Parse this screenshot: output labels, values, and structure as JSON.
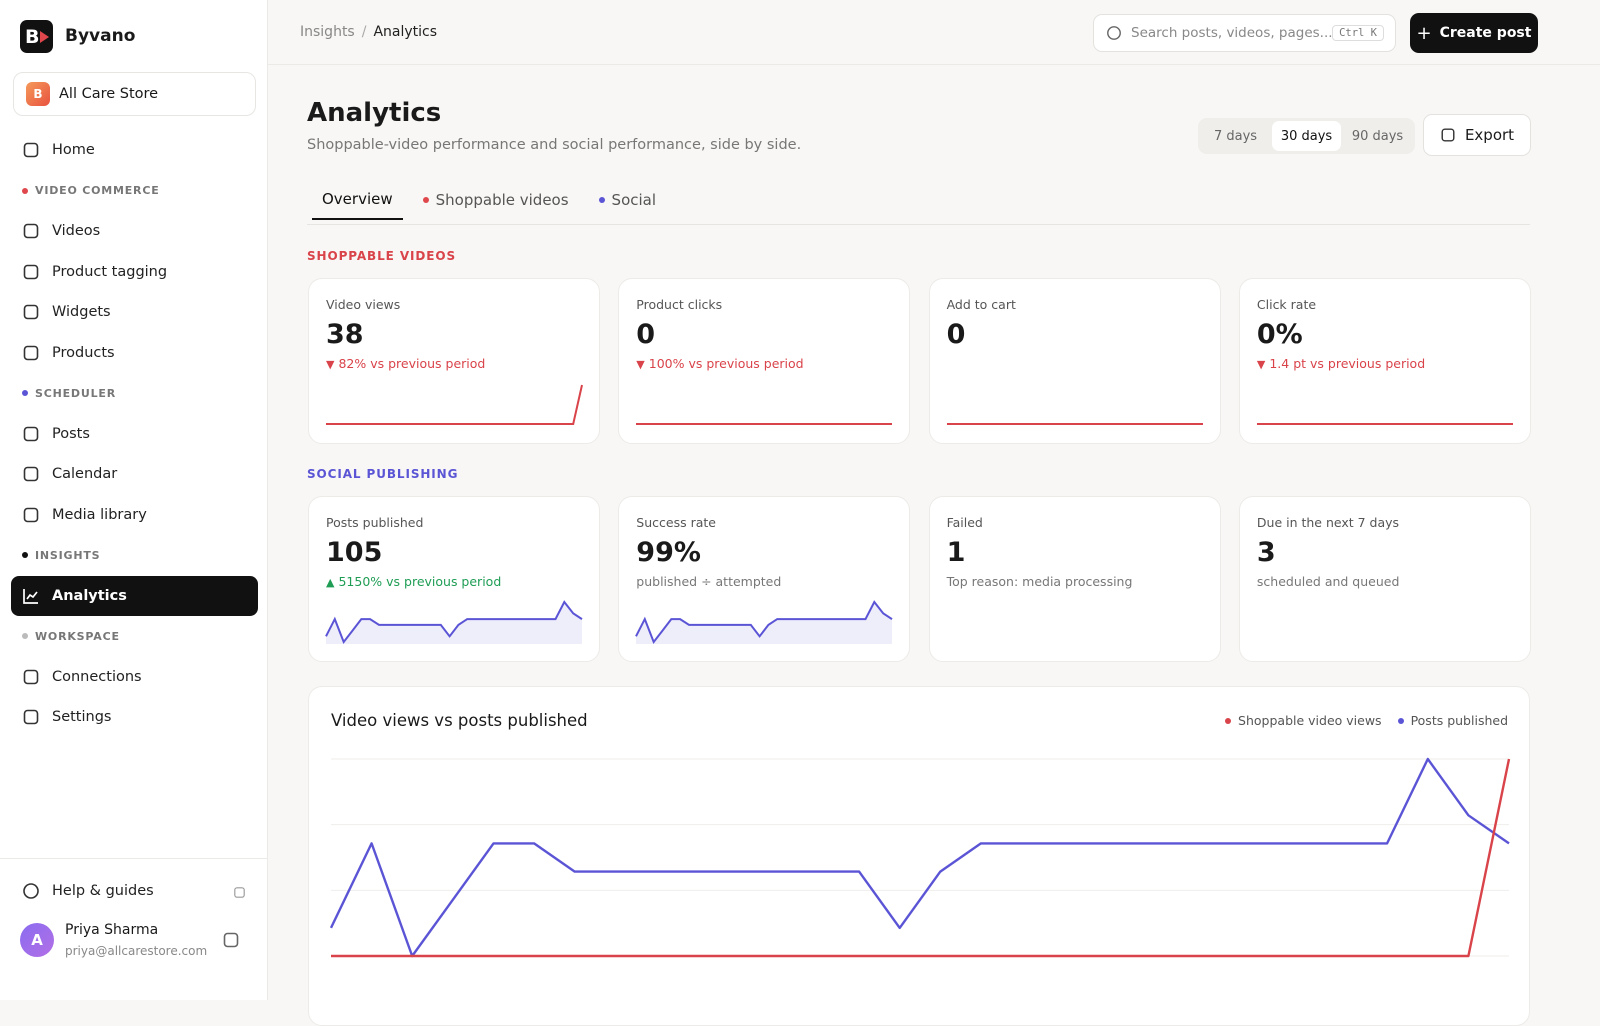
{
  "sidebar": {
    "brand": {
      "initial": "B",
      "name": "Byvano"
    },
    "store": {
      "initial": "B",
      "name": "All Care Store"
    },
    "home": "Home",
    "sections": [
      {
        "title": "VIDEO COMMERCE",
        "color": "#e0474c",
        "items": [
          {
            "label": "Videos"
          },
          {
            "label": "Product tagging"
          },
          {
            "label": "Widgets"
          },
          {
            "label": "Products"
          }
        ]
      },
      {
        "title": "SCHEDULER",
        "color": "#5b55d6",
        "items": [
          {
            "label": "Posts"
          },
          {
            "label": "Calendar"
          },
          {
            "label": "Media library"
          }
        ]
      },
      {
        "title": "INSIGHTS",
        "color": "#111111",
        "items": [
          {
            "label": "Analytics",
            "active": true
          }
        ]
      },
      {
        "title": "WORKSPACE",
        "color": "#bbbbbb",
        "items": [
          {
            "label": "Connections"
          },
          {
            "label": "Settings"
          }
        ]
      }
    ],
    "help": "Help & guides",
    "user": {
      "initial": "A",
      "name": "Priya Sharma",
      "email": "priya@allcarestore.com"
    }
  },
  "topbar": {
    "breadcrumb": [
      "Insights",
      "Analytics"
    ],
    "separator": "/",
    "search_placeholder": "Search posts, videos, pages...",
    "shortcut": "Ctrl K",
    "create_button": "Create post"
  },
  "header": {
    "title": "Analytics",
    "subtitle": "Shoppable-video performance and social performance, side by side.",
    "ranges": [
      {
        "label": "7 days"
      },
      {
        "label": "30 days",
        "active": true
      },
      {
        "label": "90 days"
      }
    ],
    "export": "Export"
  },
  "tabs": [
    {
      "label": "Overview",
      "active": true
    },
    {
      "label": "Shoppable videos",
      "color": "#e0474c"
    },
    {
      "label": "Social",
      "color": "#5b55d6"
    }
  ],
  "groups": [
    {
      "title": "SHOPPABLE VIDEOS",
      "color": "#d9434a",
      "cards": [
        {
          "label": "Video views",
          "value": "38",
          "delta": {
            "text": "82% vs previous period",
            "direction": "down"
          },
          "spark": {
            "color": "#d9434a",
            "values": [
              0,
              0,
              0,
              0,
              0,
              0,
              0,
              0,
              0,
              0,
              0,
              0,
              0,
              0,
              0,
              0,
              0,
              0,
              0,
              0,
              0,
              0,
              0,
              0,
              0,
              0,
              0,
              0,
              0,
              38
            ]
          }
        },
        {
          "label": "Product clicks",
          "value": "0",
          "delta": {
            "text": "100% vs previous period",
            "direction": "down"
          },
          "spark": {
            "color": "#d9434a",
            "values": [
              0,
              0,
              0,
              0,
              0,
              0,
              0,
              0,
              0,
              0,
              0,
              0,
              0,
              0,
              0,
              0,
              0,
              0,
              0,
              0,
              0,
              0,
              0,
              0,
              0,
              0,
              0,
              0,
              0,
              0
            ]
          }
        },
        {
          "label": "Add to cart",
          "value": "0",
          "spark": {
            "color": "#d9434a",
            "values": [
              0,
              0,
              0,
              0,
              0,
              0,
              0,
              0,
              0,
              0,
              0,
              0,
              0,
              0,
              0,
              0,
              0,
              0,
              0,
              0,
              0,
              0,
              0,
              0,
              0,
              0,
              0,
              0,
              0,
              0
            ]
          }
        },
        {
          "label": "Click rate",
          "value": "0%",
          "delta": {
            "text": "1.4 pt vs previous period",
            "direction": "down"
          },
          "spark": {
            "color": "#d9434a",
            "values": [
              0,
              0,
              0,
              0,
              0,
              0,
              0,
              0,
              0,
              0,
              0,
              0,
              0,
              0,
              0,
              0,
              0,
              0,
              0,
              0,
              0,
              0,
              0,
              0,
              0,
              0,
              0,
              0,
              0,
              0
            ]
          }
        }
      ]
    },
    {
      "title": "SOCIAL PUBLISHING",
      "color": "#5b55d6",
      "cards": [
        {
          "label": "Posts published",
          "value": "105",
          "delta": {
            "text": "5150% vs previous period",
            "direction": "up"
          },
          "spark": {
            "color": "#5b55d6",
            "area": true,
            "values": [
              1,
              4,
              0,
              2,
              4,
              4,
              3,
              3,
              3,
              3,
              3,
              3,
              3,
              3,
              1,
              3,
              4,
              4,
              4,
              4,
              4,
              4,
              4,
              4,
              4,
              4,
              4,
              7,
              5,
              4
            ]
          }
        },
        {
          "label": "Success rate",
          "value": "99%",
          "note": "published ÷ attempted",
          "spark": {
            "color": "#5b55d6",
            "area": true,
            "values": [
              1,
              4,
              0,
              2,
              4,
              4,
              3,
              3,
              3,
              3,
              3,
              3,
              3,
              3,
              1,
              3,
              4,
              4,
              4,
              4,
              4,
              4,
              4,
              4,
              4,
              4,
              4,
              7,
              5,
              4
            ]
          }
        },
        {
          "label": "Failed",
          "value": "1",
          "note": "Top reason: media processing"
        },
        {
          "label": "Due in the next 7 days",
          "value": "3",
          "note": "scheduled and queued"
        }
      ]
    }
  ],
  "chart_data": {
    "type": "line",
    "title": "Video views vs posts published",
    "categories": [
      null,
      null,
      null,
      null,
      null,
      null,
      null,
      null,
      null,
      null,
      null,
      null,
      null,
      null,
      null,
      null,
      null,
      null,
      null,
      null,
      null,
      null,
      null,
      null,
      null,
      null,
      null,
      null,
      null,
      null
    ],
    "ylim": [
      0,
      38
    ],
    "y2lim": [
      0,
      7
    ],
    "legend": "top-right",
    "series": [
      {
        "name": "Shoppable video views",
        "color": "#d9434a",
        "values": [
          0,
          0,
          0,
          0,
          0,
          0,
          0,
          0,
          0,
          0,
          0,
          0,
          0,
          0,
          0,
          0,
          0,
          0,
          0,
          0,
          0,
          0,
          0,
          0,
          0,
          0,
          0,
          0,
          0,
          38
        ]
      },
      {
        "name": "Posts published",
        "color": "#5b55d6",
        "axis": "y2",
        "values": [
          1,
          4,
          0,
          2,
          4,
          4,
          3,
          3,
          3,
          3,
          3,
          3,
          3,
          3,
          1,
          3,
          4,
          4,
          4,
          4,
          4,
          4,
          4,
          4,
          4,
          4,
          4,
          7,
          5,
          4
        ]
      }
    ]
  }
}
